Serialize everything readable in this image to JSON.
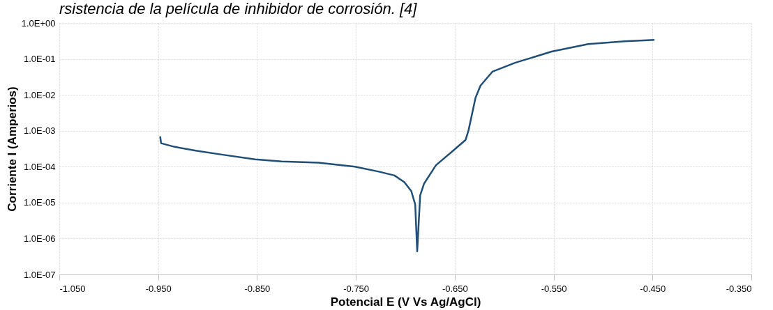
{
  "chart_data": {
    "type": "line",
    "annotations": [
      "rsistencia de la película de inhibidor de corrosión. [4]"
    ],
    "xlabel": "Potencial E (V Vs Ag/AgCl)",
    "ylabel": "Corriente I (Amperios)",
    "x": [
      -0.948,
      -0.947,
      -0.934,
      -0.912,
      -0.887,
      -0.852,
      -0.825,
      -0.788,
      -0.751,
      -0.726,
      -0.711,
      -0.701,
      -0.694,
      -0.69,
      -0.688,
      -0.685,
      -0.681,
      -0.669,
      -0.651,
      -0.639,
      -0.636,
      -0.629,
      -0.624,
      -0.612,
      -0.589,
      -0.552,
      -0.515,
      -0.478,
      -0.448
    ],
    "series": [
      {
        "color": "#1f4e79",
        "values": [
          0.0007,
          0.00045,
          0.00036,
          0.00028,
          0.00022,
          0.00016,
          0.00014,
          0.00013,
          0.0001,
          7.2e-05,
          5.7e-05,
          3.7e-05,
          2.1e-05,
          8.8e-06,
          4.4e-07,
          1.6e-05,
          3.4e-05,
          0.00011,
          0.00029,
          0.00056,
          0.00105,
          0.0083,
          0.018,
          0.044,
          0.078,
          0.16,
          0.26,
          0.31,
          0.34
        ]
      }
    ],
    "log": "y",
    "grid": true,
    "line_style": "solid",
    "marker": "none",
    "xlim": [
      -1.05,
      -0.35
    ],
    "xticks": [
      {
        "value": -1.05,
        "label": "-1.050"
      },
      {
        "value": -0.95,
        "label": "-0.950"
      },
      {
        "value": -0.85,
        "label": "-0.850"
      },
      {
        "value": -0.75,
        "label": "-0.750"
      },
      {
        "value": -0.65,
        "label": "-0.650"
      },
      {
        "value": -0.55,
        "label": "-0.550"
      },
      {
        "value": -0.45,
        "label": "-0.450"
      },
      {
        "value": -0.35,
        "label": "-0.350"
      }
    ],
    "ylim": [
      1e-07,
      1
    ],
    "yticks": [
      {
        "value": 1e-07,
        "label": "1.0E-07"
      },
      {
        "value": 1e-06,
        "label": "1.0E-06"
      },
      {
        "value": 1e-05,
        "label": "1.0E-05"
      },
      {
        "value": 0.0001,
        "label": "1.0E-04"
      },
      {
        "value": 0.001,
        "label": "1.0E-03"
      },
      {
        "value": 0.01,
        "label": "1.0E-02"
      },
      {
        "value": 0.1,
        "label": "1.0E-01"
      },
      {
        "value": 1,
        "label": "1.0E+00"
      }
    ]
  }
}
